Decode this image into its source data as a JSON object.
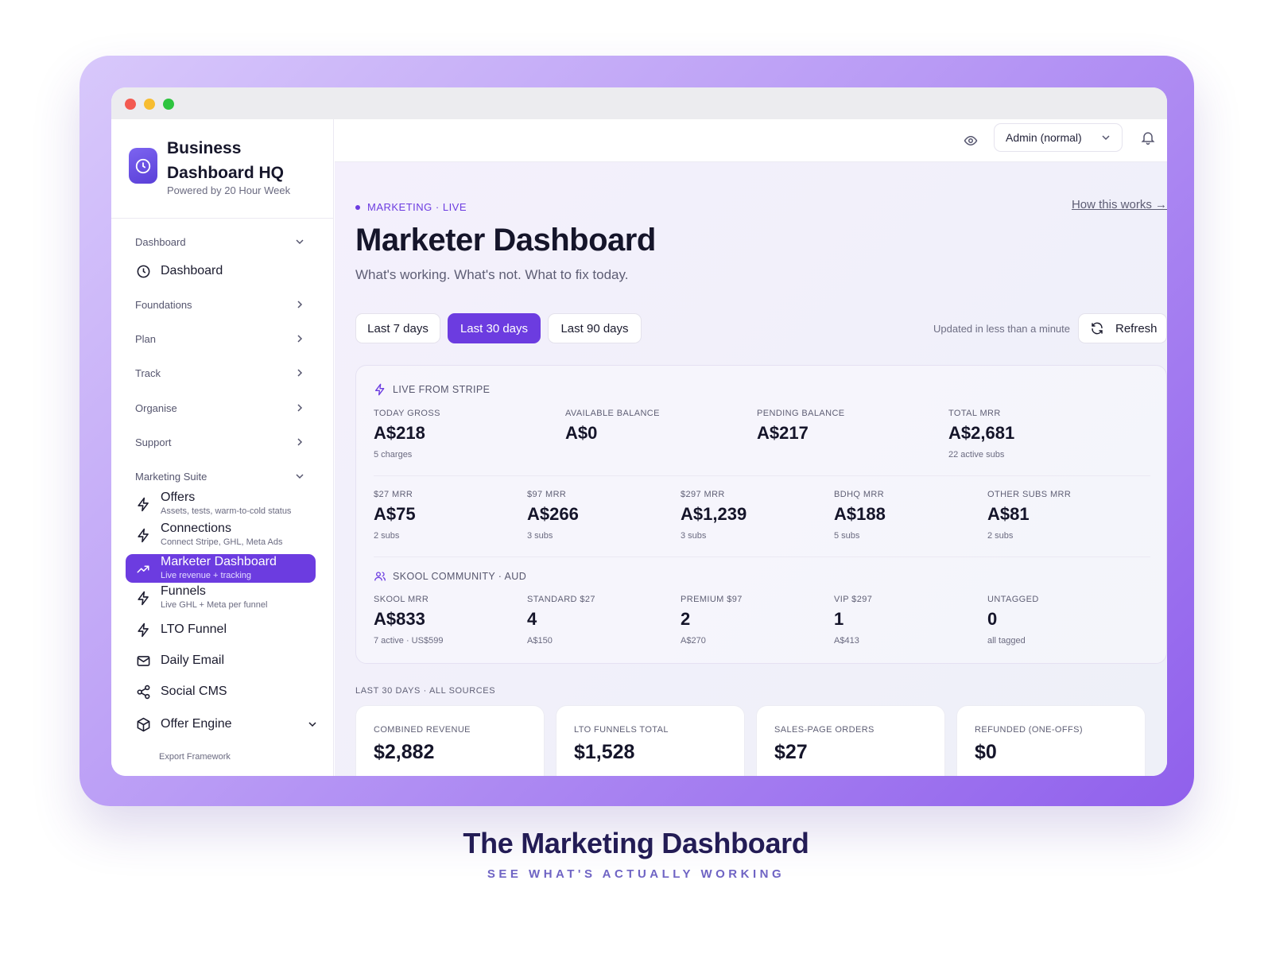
{
  "brand": {
    "title": "Business Dashboard HQ",
    "subtitle": "Powered by 20 Hour Week",
    "icon": "clock-icon"
  },
  "sidebar": {
    "groups": {
      "dashboard": "Dashboard",
      "foundations": "Foundations",
      "plan": "Plan",
      "track": "Track",
      "organise": "Organise",
      "support": "Support",
      "marketing_suite": "Marketing Suite"
    },
    "items": [
      {
        "label": "Dashboard",
        "icon": "clock-icon"
      },
      {
        "label": "Offers",
        "sub": "Assets, tests, warm-to-cold status",
        "icon": "bolt-icon"
      },
      {
        "label": "Connections",
        "sub": "Connect Stripe, GHL, Meta Ads",
        "icon": "bolt-icon"
      },
      {
        "label": "Marketer Dashboard",
        "sub": "Live revenue + tracking",
        "icon": "trend-up-icon",
        "active": true
      },
      {
        "label": "Funnels",
        "sub": "Live GHL + Meta per funnel",
        "icon": "bolt-icon"
      },
      {
        "label": "LTO Funnel",
        "icon": "bolt-icon"
      },
      {
        "label": "Daily Email",
        "icon": "mail-icon"
      },
      {
        "label": "Social CMS",
        "icon": "share-icon"
      },
      {
        "label": "Offer Engine",
        "icon": "cube-icon"
      },
      {
        "label": "Export Framework"
      }
    ]
  },
  "topbar": {
    "role_select": "Admin (normal)"
  },
  "header": {
    "eyebrow": "MARKETING · LIVE",
    "title": "Marketer Dashboard",
    "subtitle": "What's working. What's not. What to fix today.",
    "how_link": "How this works →"
  },
  "ranges": [
    "Last 7 days",
    "Last 30 days",
    "Last 90 days"
  ],
  "active_range": "Last 30 days",
  "updated": "Updated in less than a minute",
  "refresh_label": "Refresh",
  "stripe": {
    "heading": "LIVE FROM STRIPE",
    "top": [
      {
        "label": "TODAY GROSS",
        "value": "A$218",
        "sub": "5 charges"
      },
      {
        "label": "AVAILABLE BALANCE",
        "value": "A$0",
        "sub": ""
      },
      {
        "label": "PENDING BALANCE",
        "value": "A$217",
        "sub": ""
      },
      {
        "label": "TOTAL MRR",
        "value": "A$2,681",
        "sub": "22 active subs"
      }
    ],
    "mrr": [
      {
        "label": "$27 MRR",
        "value": "A$75",
        "sub": "2 subs"
      },
      {
        "label": "$97 MRR",
        "value": "A$266",
        "sub": "3 subs"
      },
      {
        "label": "$297 MRR",
        "value": "A$1,239",
        "sub": "3 subs"
      },
      {
        "label": "BDHQ MRR",
        "value": "A$188",
        "sub": "5 subs"
      },
      {
        "label": "OTHER SUBS MRR",
        "value": "A$81",
        "sub": "2 subs"
      }
    ]
  },
  "skool": {
    "heading": "SKOOL COMMUNITY · AUD",
    "metrics": [
      {
        "label": "SKOOL MRR",
        "value": "A$833",
        "sub": "7 active · US$599"
      },
      {
        "label": "STANDARD $27",
        "value": "4",
        "sub": "A$150"
      },
      {
        "label": "PREMIUM $97",
        "value": "2",
        "sub": "A$270"
      },
      {
        "label": "VIP $297",
        "value": "1",
        "sub": "A$413"
      },
      {
        "label": "UNTAGGED",
        "value": "0",
        "sub": "all tagged"
      }
    ]
  },
  "sources": {
    "heading": "LAST 30 DAYS · ALL SOURCES",
    "cards": [
      {
        "label": "COMBINED REVENUE",
        "value": "$2,882"
      },
      {
        "label": "LTO FUNNELS TOTAL",
        "value": "$1,528"
      },
      {
        "label": "SALES-PAGE ORDERS",
        "value": "$27"
      },
      {
        "label": "REFUNDED (ONE-OFFS)",
        "value": "$0"
      }
    ]
  },
  "caption": {
    "title": "The Marketing Dashboard",
    "subtitle": "SEE WHAT'S ACTUALLY WORKING"
  },
  "colors": {
    "accent": "#6c3ce0",
    "frame_gradient_start": "#d8c8fb",
    "frame_gradient_end": "#9060ec",
    "caption_title": "#231c55"
  }
}
